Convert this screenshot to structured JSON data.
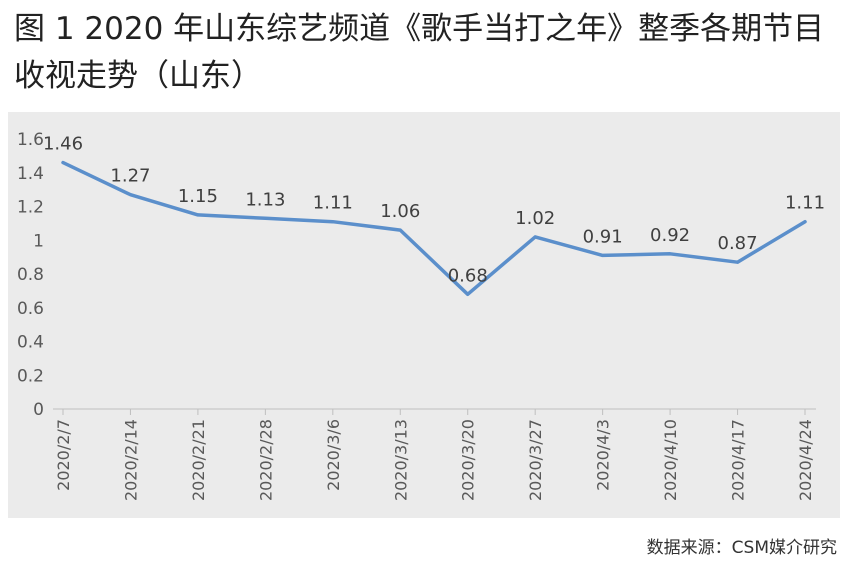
{
  "header": {
    "title": "图 1 2020 年山东综艺频道《歌手当打之年》整季各期节目收视走势（山东）"
  },
  "footer": {
    "source": "数据来源：CSM媒介研究"
  },
  "colors": {
    "line": "#5b8fcb",
    "background": "#ebebeb",
    "axis": "#bfbfbf",
    "tick_text": "#595959",
    "label_text": "#404040"
  },
  "chart_data": {
    "type": "line",
    "title": "图 1 2020 年山东综艺频道《歌手当打之年》整季各期节目收视走势（山东）",
    "xlabel": "",
    "ylabel": "",
    "categories": [
      "2020/2/7",
      "2020/2/14",
      "2020/2/21",
      "2020/2/28",
      "2020/3/6",
      "2020/3/13",
      "2020/3/20",
      "2020/3/27",
      "2020/4/3",
      "2020/4/10",
      "2020/4/17",
      "2020/4/24"
    ],
    "series": [
      {
        "values": [
          1.46,
          1.27,
          1.15,
          1.13,
          1.11,
          1.06,
          0.68,
          1.02,
          0.91,
          0.92,
          0.87,
          1.11
        ],
        "labels": [
          "1.46",
          "1.27",
          "1.15",
          "1.13",
          "1.11",
          "1.06",
          "0.68",
          "1.02",
          "0.91",
          "0.92",
          "0.87",
          "1.11"
        ]
      }
    ],
    "ylim": [
      0,
      1.6
    ],
    "yticks": [
      0,
      0.2,
      0.4,
      0.6,
      0.8,
      1,
      1.2,
      1.4,
      1.6
    ],
    "ytick_labels": [
      "0",
      "0.2",
      "0.4",
      "0.6",
      "0.8",
      "1",
      "1.2",
      "1.4",
      "1.6"
    ],
    "grid": false,
    "legend": "none"
  }
}
